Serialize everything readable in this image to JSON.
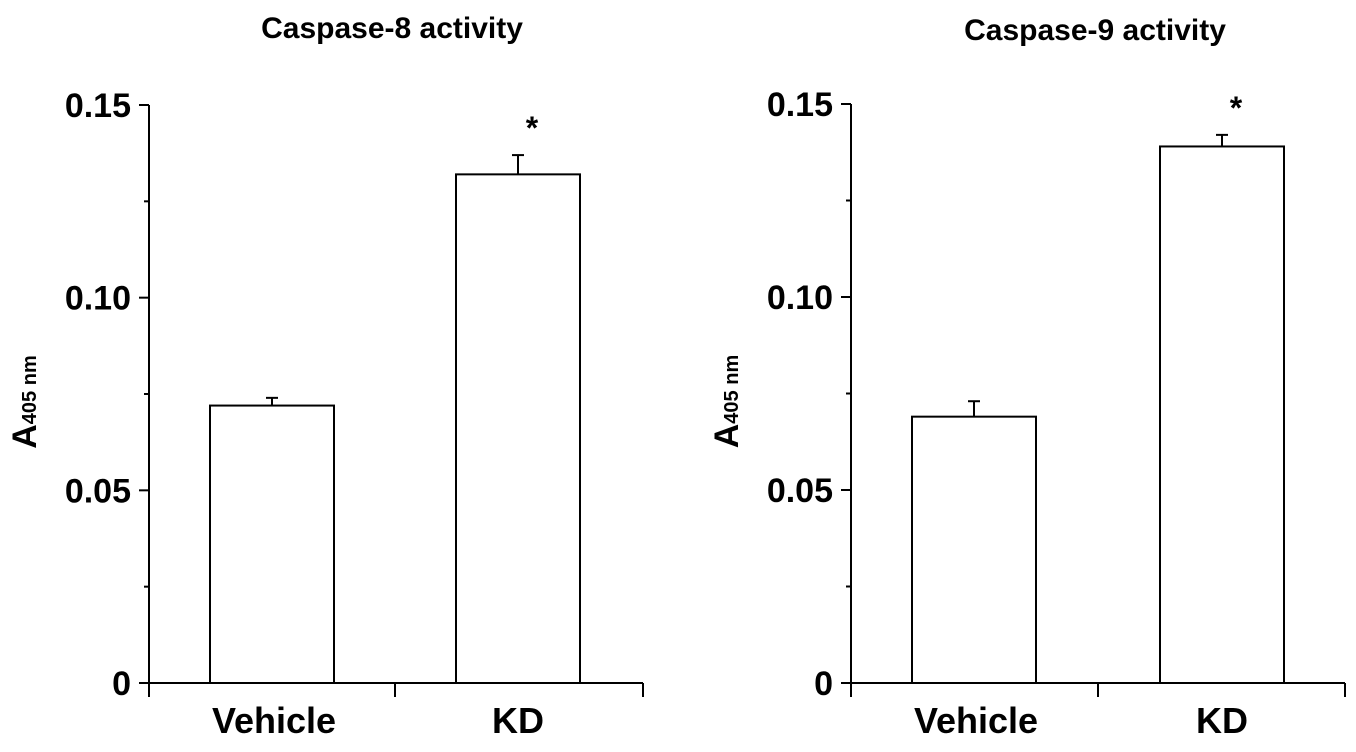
{
  "chart_data": [
    {
      "type": "bar",
      "title": "Caspase-8 activity",
      "ylabel_main": "A",
      "ylabel_sub": "405 nm",
      "categories": [
        "Vehicle",
        "KD"
      ],
      "values": [
        0.072,
        0.132
      ],
      "errors": [
        0.002,
        0.005
      ],
      "annotations": [
        "",
        "*"
      ],
      "ylim": [
        0,
        0.15
      ],
      "yticks": [
        0,
        0.05,
        0.1,
        0.15
      ],
      "ytick_labels": [
        "0",
        "0.05",
        "0.10",
        "0.15"
      ],
      "grid": false,
      "colors": {
        "bar_fill": "#ffffff",
        "bar_stroke": "#000000"
      }
    },
    {
      "type": "bar",
      "title": "Caspase-9 activity",
      "ylabel_main": "A",
      "ylabel_sub": "405 nm",
      "categories": [
        "Vehicle",
        "KD"
      ],
      "values": [
        0.069,
        0.139
      ],
      "errors": [
        0.004,
        0.003
      ],
      "annotations": [
        "",
        "*"
      ],
      "ylim": [
        0,
        0.15
      ],
      "yticks": [
        0,
        0.05,
        0.1,
        0.15
      ],
      "ytick_labels": [
        "0",
        "0.05",
        "0.10",
        "0.15"
      ],
      "grid": false,
      "colors": {
        "bar_fill": "#ffffff",
        "bar_stroke": "#000000"
      }
    }
  ]
}
